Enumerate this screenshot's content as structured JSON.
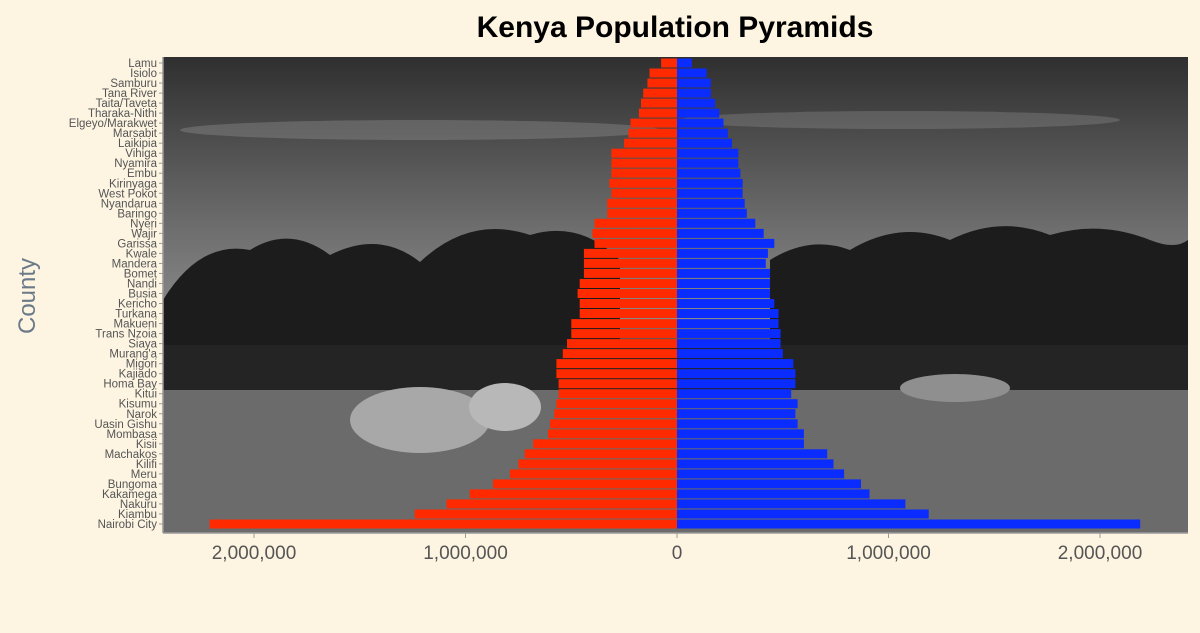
{
  "chart_data": {
    "type": "bar",
    "orientation": "horizontal",
    "title": "Kenya Population Pyramids",
    "xlabel": "",
    "ylabel": "County",
    "xlim": [
      -2450000,
      2420000
    ],
    "xticks": [
      -2000000,
      -1000000,
      0,
      1000000,
      2000000
    ],
    "xtick_labels": [
      "2,000,000",
      "1,000,000",
      "0",
      "1,000,000",
      "2,000,000"
    ],
    "grid": false,
    "legend": "none",
    "categories": [
      "Nairobi City",
      "Kiambu",
      "Nakuru",
      "Kakamega",
      "Bungoma",
      "Meru",
      "Kilifi",
      "Machakos",
      "Kisii",
      "Mombasa",
      "Uasin Gishu",
      "Narok",
      "Kisumu",
      "Kitui",
      "Homa Bay",
      "Kajiado",
      "Migori",
      "Murang'a",
      "Siaya",
      "Trans Nzoia",
      "Makueni",
      "Turkana",
      "Kericho",
      "Busia",
      "Nandi",
      "Bomet",
      "Mandera",
      "Kwale",
      "Garissa",
      "Wajir",
      "Nyeri",
      "Baringo",
      "Nyandarua",
      "West Pokot",
      "Kirinyaga",
      "Embu",
      "Nyamira",
      "Vihiga",
      "Laikipia",
      "Marsabit",
      "Elgeyo/Marakwet",
      "Tharaka-Nithi",
      "Taita/Taveta",
      "Tana River",
      "Samburu",
      "Isiolo",
      "Lamu"
    ],
    "series": [
      {
        "color": "#ff2a00",
        "side": "left",
        "values": [
          2210000,
          1240000,
          1090000,
          980000,
          870000,
          790000,
          750000,
          720000,
          680000,
          610000,
          600000,
          580000,
          570000,
          560000,
          560000,
          570000,
          570000,
          540000,
          520000,
          500000,
          500000,
          460000,
          460000,
          470000,
          460000,
          440000,
          440000,
          440000,
          390000,
          400000,
          390000,
          330000,
          330000,
          310000,
          320000,
          310000,
          310000,
          310000,
          250000,
          230000,
          220000,
          180000,
          170000,
          160000,
          140000,
          130000,
          75000
        ]
      },
      {
        "color": "#0a2cff",
        "side": "right",
        "values": [
          2190000,
          1190000,
          1080000,
          910000,
          870000,
          790000,
          740000,
          710000,
          600000,
          600000,
          570000,
          560000,
          570000,
          540000,
          560000,
          560000,
          550000,
          500000,
          490000,
          490000,
          480000,
          480000,
          460000,
          440000,
          440000,
          440000,
          420000,
          430000,
          460000,
          410000,
          370000,
          330000,
          320000,
          310000,
          310000,
          300000,
          290000,
          290000,
          260000,
          240000,
          220000,
          200000,
          180000,
          160000,
          160000,
          140000,
          70000
        ]
      }
    ]
  }
}
